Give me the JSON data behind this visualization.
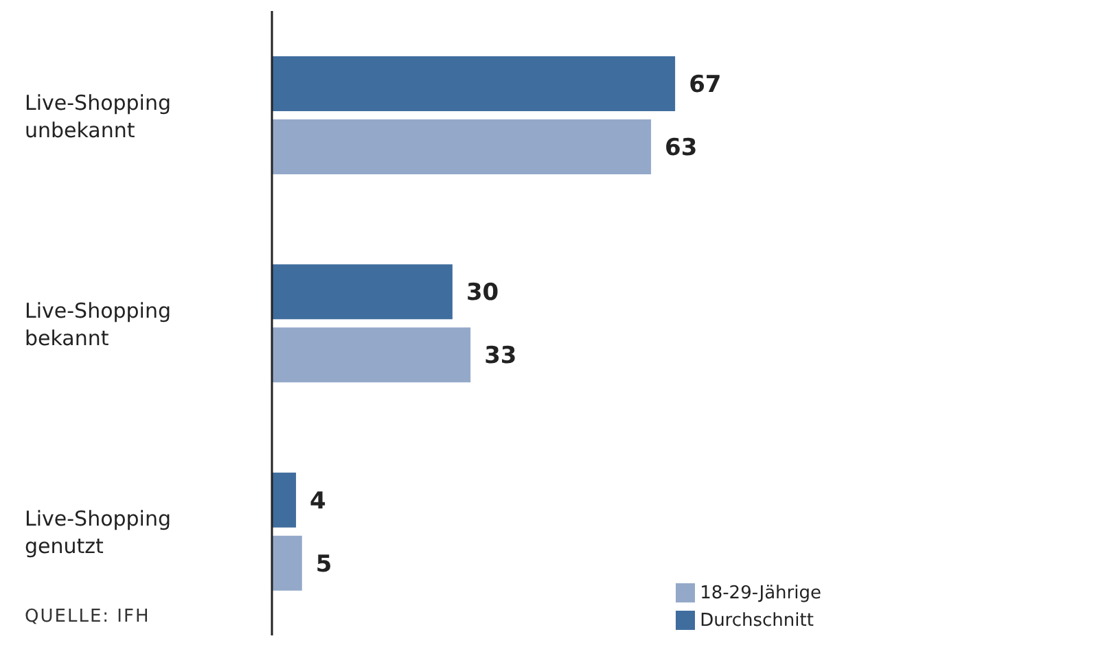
{
  "chart_data": {
    "type": "bar",
    "orientation": "horizontal",
    "categories": [
      "Live-Shopping unbekannt",
      "Live-Shopping bekannt",
      "Live-Shopping genutzt"
    ],
    "series": [
      {
        "name": "Durchschnitt",
        "color": "#3f6d9e",
        "values": [
          67,
          30,
          4
        ]
      },
      {
        "name": "18-29-Jährige",
        "color": "#94a9c9",
        "values": [
          63,
          33,
          5
        ]
      }
    ],
    "data_labels": true,
    "legend": "bottom right",
    "grid": false,
    "annotations": [
      "QUELLE: IFH"
    ]
  }
}
